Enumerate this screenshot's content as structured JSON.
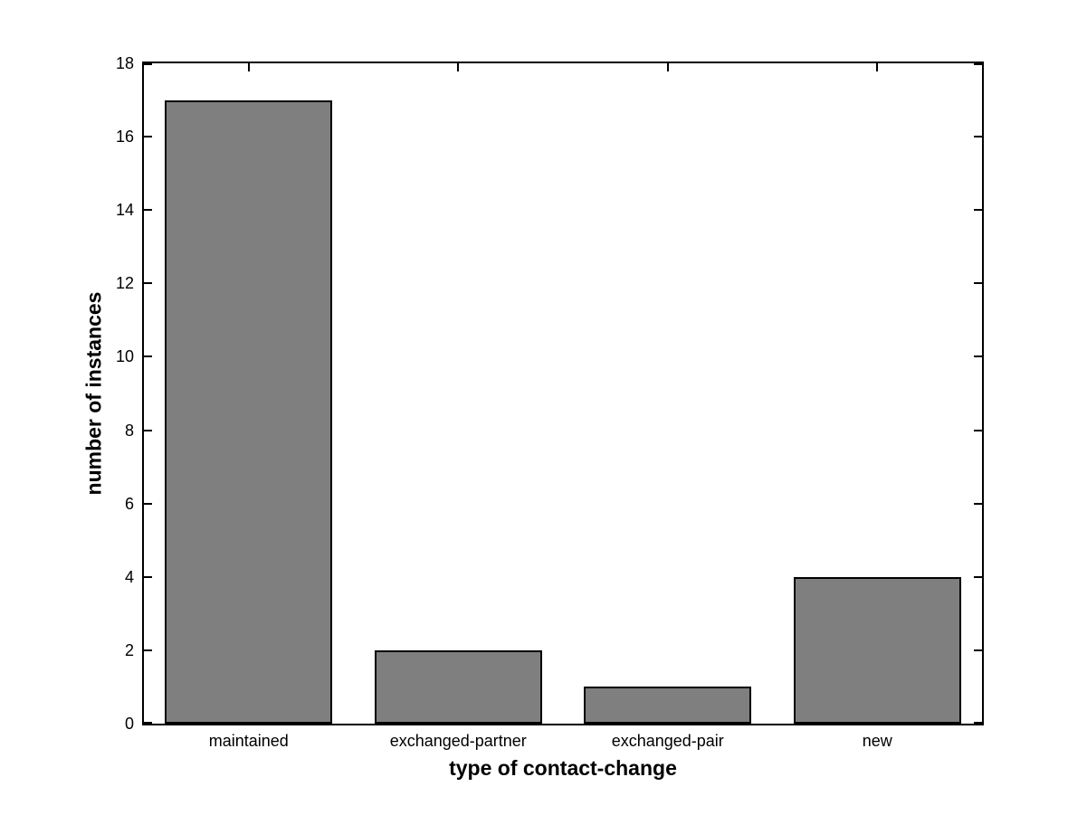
{
  "chart_data": {
    "type": "bar",
    "title": "",
    "categories": [
      "maintained",
      "exchanged-partner",
      "exchanged-pair",
      "new"
    ],
    "values": [
      17,
      2,
      1,
      4
    ],
    "xlabel": "type of contact-change",
    "ylabel": "number of instances",
    "ylim": [
      0,
      18
    ],
    "yticks": [
      0,
      2,
      4,
      6,
      8,
      10,
      12,
      14,
      16,
      18
    ],
    "bar_width_fraction": 0.8,
    "bar_fill_color": "#7F7F7F",
    "bar_edge_color": "#000000",
    "axis_color": "#000000",
    "background_color": "#FFFFFF",
    "grid": false,
    "legend": null
  }
}
